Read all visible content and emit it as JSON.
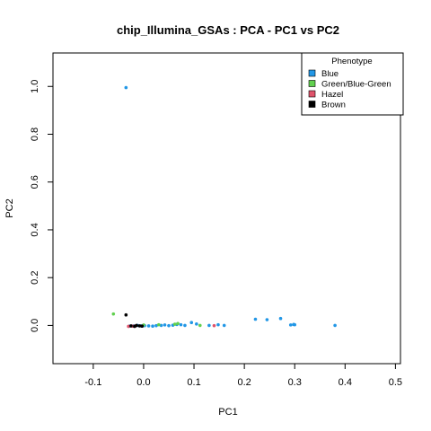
{
  "chart_data": {
    "type": "scatter",
    "title": "chip_Illumina_GSAs : PCA - PC1 vs PC2",
    "xlabel": "PC1",
    "ylabel": "PC2",
    "xlim": [
      -0.18,
      0.51
    ],
    "ylim": [
      -0.16,
      1.14
    ],
    "xticks": [
      -0.1,
      0.0,
      0.1,
      0.2,
      0.3,
      0.4,
      0.5
    ],
    "xtick_labels": [
      "-0.1",
      "0.0",
      "0.1",
      "0.2",
      "0.3",
      "0.4",
      "0.5"
    ],
    "yticks": [
      0.0,
      0.2,
      0.4,
      0.6,
      0.8,
      1.0
    ],
    "ytick_labels": [
      "0.0",
      "0.2",
      "0.4",
      "0.6",
      "0.8",
      "1.0"
    ],
    "grid": false,
    "legend": {
      "title": "Phenotype",
      "position": "top-right"
    },
    "series": [
      {
        "name": "Blue",
        "color": "#2297E6",
        "points": [
          [
            -0.035,
            0.995
          ],
          [
            -0.028,
            -0.003
          ],
          [
            -0.02,
            -0.002
          ],
          [
            -0.012,
            0.0
          ],
          [
            -0.005,
            -0.002
          ],
          [
            0.002,
            -0.001
          ],
          [
            0.01,
            -0.002
          ],
          [
            0.018,
            -0.003
          ],
          [
            0.025,
            -0.001
          ],
          [
            0.035,
            0.0
          ],
          [
            0.042,
            0.002
          ],
          [
            0.05,
            -0.001
          ],
          [
            0.058,
            0.001
          ],
          [
            0.066,
            0.004
          ],
          [
            0.074,
            0.003
          ],
          [
            0.082,
            0.0
          ],
          [
            0.095,
            0.012
          ],
          [
            0.105,
            0.006
          ],
          [
            0.13,
            0.0
          ],
          [
            0.148,
            0.003
          ],
          [
            0.16,
            0.0
          ],
          [
            0.222,
            0.026
          ],
          [
            0.245,
            0.024
          ],
          [
            0.272,
            0.029
          ],
          [
            0.292,
            0.002
          ],
          [
            0.298,
            0.004
          ],
          [
            0.3,
            0.003
          ],
          [
            0.38,
            0.0
          ]
        ]
      },
      {
        "name": "Green/Blue-Green",
        "color": "#61D04F",
        "points": [
          [
            -0.06,
            0.048
          ],
          [
            0.0,
            0.002
          ],
          [
            0.03,
            0.003
          ],
          [
            0.062,
            0.005
          ],
          [
            0.068,
            0.008
          ],
          [
            0.112,
            0.0
          ]
        ]
      },
      {
        "name": "Hazel",
        "color": "#DF536B",
        "points": [
          [
            -0.03,
            -0.004
          ],
          [
            -0.022,
            -0.003
          ],
          [
            -0.016,
            -0.002
          ],
          [
            0.14,
            -0.001
          ]
        ]
      },
      {
        "name": "Brown",
        "color": "#000000",
        "points": [
          [
            -0.035,
            0.044
          ],
          [
            -0.025,
            -0.002
          ],
          [
            -0.018,
            -0.004
          ],
          [
            -0.014,
            0.0
          ],
          [
            -0.008,
            -0.002
          ],
          [
            -0.003,
            -0.003
          ]
        ]
      }
    ]
  }
}
